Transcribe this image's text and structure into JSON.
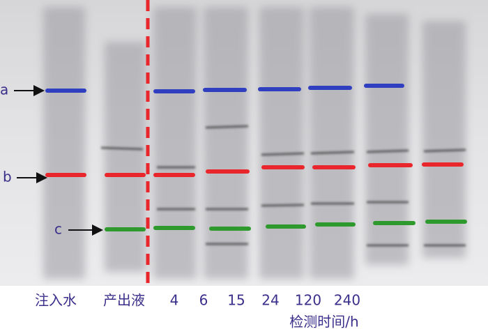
{
  "markers": {
    "a": "a",
    "b": "b",
    "c": "c"
  },
  "lanes": [
    "注入水",
    "产出液",
    "4",
    "6",
    "15",
    "24",
    "120",
    "240"
  ],
  "axis_label": "检测时间/h"
}
